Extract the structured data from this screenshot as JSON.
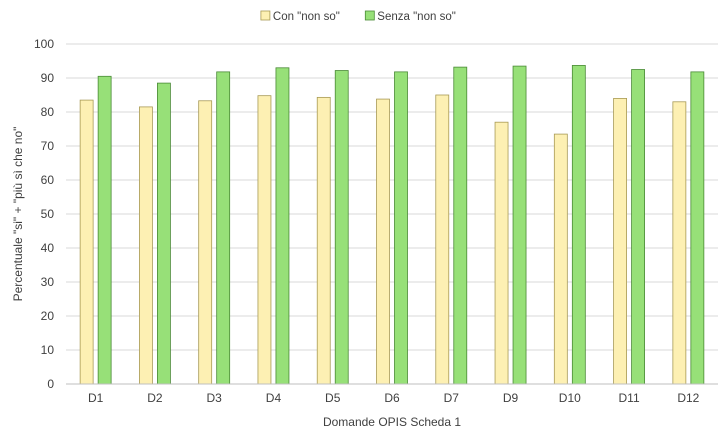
{
  "chart_data": {
    "type": "bar",
    "title": "",
    "xlabel": "Domande OPIS Scheda 1",
    "ylabel": "Percentuale \"si\" + \"più sì che no\"",
    "ylim": [
      0,
      100
    ],
    "yticks": [
      "0",
      "10",
      "20",
      "30",
      "40",
      "50",
      "60",
      "70",
      "80",
      "90",
      "100"
    ],
    "grid": true,
    "legend_position": "top",
    "categories": [
      "D1",
      "D2",
      "D3",
      "D4",
      "D5",
      "D6",
      "D7",
      "D9",
      "D10",
      "D11",
      "D12"
    ],
    "series": [
      {
        "name": "Con \"non so\"",
        "color": "#fdf0b3",
        "stroke": "#a89a55",
        "values": [
          83.5,
          81.5,
          83.3,
          84.8,
          84.3,
          83.8,
          85.0,
          77.0,
          73.5,
          84.0,
          83.0
        ]
      },
      {
        "name": "Senza \"non so\"",
        "color": "#97e078",
        "stroke": "#4a8a36",
        "values": [
          90.5,
          88.5,
          91.8,
          93.0,
          92.2,
          91.8,
          93.2,
          93.5,
          93.7,
          92.5,
          91.8
        ]
      }
    ]
  }
}
